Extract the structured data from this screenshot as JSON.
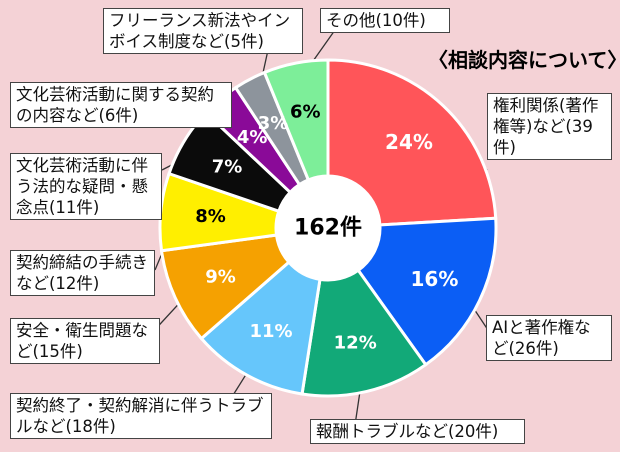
{
  "chart_data": {
    "type": "donut",
    "title": "〈相談内容について〉",
    "center_label": "162件",
    "total": 162,
    "slices": [
      {
        "label": "権利関係(著作権等)など(39件)",
        "count": 39,
        "percent": "24%",
        "color": "#ff5559"
      },
      {
        "label": "AIと著作権など(26件)",
        "count": 26,
        "percent": "16%",
        "color": "#0b5ef5"
      },
      {
        "label": "報酬トラブルなど(20件)",
        "count": 20,
        "percent": "12%",
        "color": "#12a978"
      },
      {
        "label": "契約終了・契約解消に伴うトラブルなど(18件)",
        "count": 18,
        "percent": "11%",
        "color": "#66c6fb"
      },
      {
        "label": "安全・衛生問題など(15件)",
        "count": 15,
        "percent": "9%",
        "color": "#f5a101"
      },
      {
        "label": "契約締結の手続きなど(12件)",
        "count": 12,
        "percent": "8%",
        "color": "#ffef00"
      },
      {
        "label": "文化芸術活動に伴う法的な疑問・懸念点(11件)",
        "count": 11,
        "percent": "7%",
        "color": "#0b0b0b"
      },
      {
        "label": "文化芸術活動に関する契約の内容など(6件)",
        "count": 6,
        "percent": "4%",
        "color": "#8a0a98"
      },
      {
        "label": "フリーランス新法やインボイス制度など(5件)",
        "count": 5,
        "percent": "3%",
        "color": "#8d949c"
      },
      {
        "label": "その他(10件)",
        "count": 10,
        "percent": "6%",
        "color": "#7dee99"
      }
    ]
  }
}
